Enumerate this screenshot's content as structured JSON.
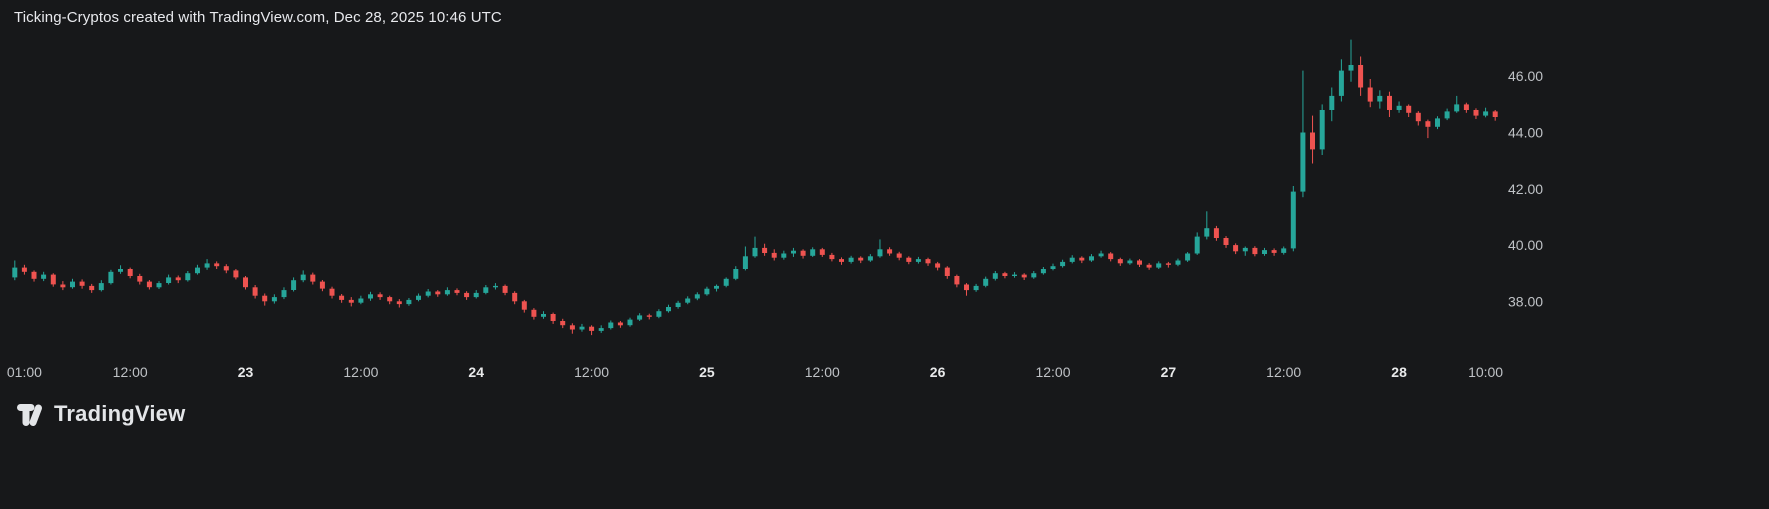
{
  "header": {
    "title": "Ticking-Cryptos created with TradingView.com, Dec 28, 2025 10:46 UTC"
  },
  "branding": {
    "name": "TradingView",
    "logo_icon": "tradingview-mark"
  },
  "colors": {
    "background": "#17181a",
    "up": "#26a69a",
    "down": "#ef5350",
    "axis_text": "#bfc2c6",
    "axis_text_major": "#e8e9ea",
    "title_text": "#e8e9ed",
    "logo": "#e3e5e8"
  },
  "chart_data": {
    "type": "candlestick",
    "title": "Ticking-Cryptos",
    "xlabel": "",
    "ylabel": "",
    "grid": false,
    "legend": "none",
    "ylim": [
      36.2,
      47.5
    ],
    "y_axis_side": "right",
    "y_ticks": [
      38,
      40,
      42,
      44,
      46
    ],
    "y_tick_labels": [
      "38.00",
      "40.00",
      "42.00",
      "44.00",
      "46.00"
    ],
    "x_ticks": [
      {
        "i": 1,
        "label": "01:00",
        "major": false
      },
      {
        "i": 12,
        "label": "12:00",
        "major": false
      },
      {
        "i": 24,
        "label": "23",
        "major": true
      },
      {
        "i": 36,
        "label": "12:00",
        "major": false
      },
      {
        "i": 48,
        "label": "24",
        "major": true
      },
      {
        "i": 60,
        "label": "12:00",
        "major": false
      },
      {
        "i": 72,
        "label": "25",
        "major": true
      },
      {
        "i": 84,
        "label": "12:00",
        "major": false
      },
      {
        "i": 96,
        "label": "26",
        "major": true
      },
      {
        "i": 108,
        "label": "12:00",
        "major": false
      },
      {
        "i": 120,
        "label": "27",
        "major": true
      },
      {
        "i": 132,
        "label": "12:00",
        "major": false
      },
      {
        "i": 144,
        "label": "28",
        "major": true
      },
      {
        "i": 153,
        "label": "10:00",
        "major": false
      }
    ],
    "candles": [
      [
        38.85,
        39.45,
        38.75,
        39.2
      ],
      [
        39.2,
        39.3,
        38.95,
        39.05
      ],
      [
        39.05,
        39.1,
        38.7,
        38.8
      ],
      [
        38.8,
        39.05,
        38.72,
        38.95
      ],
      [
        38.95,
        39.0,
        38.52,
        38.6
      ],
      [
        38.6,
        38.72,
        38.4,
        38.5
      ],
      [
        38.5,
        38.8,
        38.45,
        38.7
      ],
      [
        38.7,
        38.78,
        38.45,
        38.55
      ],
      [
        38.55,
        38.62,
        38.3,
        38.4
      ],
      [
        38.4,
        38.75,
        38.35,
        38.65
      ],
      [
        38.65,
        39.12,
        38.6,
        39.05
      ],
      [
        39.05,
        39.28,
        38.98,
        39.15
      ],
      [
        39.15,
        39.2,
        38.82,
        38.9
      ],
      [
        38.9,
        38.98,
        38.6,
        38.7
      ],
      [
        38.7,
        38.76,
        38.42,
        38.5
      ],
      [
        38.5,
        38.72,
        38.44,
        38.65
      ],
      [
        38.65,
        38.95,
        38.6,
        38.85
      ],
      [
        38.85,
        38.92,
        38.65,
        38.75
      ],
      [
        38.75,
        39.08,
        38.7,
        39.0
      ],
      [
        39.0,
        39.3,
        38.95,
        39.2
      ],
      [
        39.2,
        39.5,
        39.12,
        39.35
      ],
      [
        39.35,
        39.42,
        39.15,
        39.25
      ],
      [
        39.25,
        39.32,
        39.0,
        39.1
      ],
      [
        39.1,
        39.15,
        38.78,
        38.85
      ],
      [
        38.85,
        38.9,
        38.42,
        38.5
      ],
      [
        38.5,
        38.58,
        38.1,
        38.2
      ],
      [
        38.2,
        38.28,
        37.85,
        38.0
      ],
      [
        38.0,
        38.25,
        37.92,
        38.15
      ],
      [
        38.15,
        38.5,
        38.08,
        38.4
      ],
      [
        38.4,
        38.85,
        38.35,
        38.75
      ],
      [
        38.75,
        39.1,
        38.68,
        38.95
      ],
      [
        38.95,
        39.02,
        38.6,
        38.7
      ],
      [
        38.7,
        38.76,
        38.36,
        38.45
      ],
      [
        38.45,
        38.52,
        38.1,
        38.2
      ],
      [
        38.2,
        38.26,
        37.95,
        38.05
      ],
      [
        38.05,
        38.15,
        37.82,
        37.95
      ],
      [
        37.95,
        38.2,
        37.9,
        38.1
      ],
      [
        38.1,
        38.34,
        38.02,
        38.25
      ],
      [
        38.25,
        38.32,
        38.05,
        38.15
      ],
      [
        38.15,
        38.2,
        37.9,
        38.0
      ],
      [
        38.0,
        38.08,
        37.78,
        37.9
      ],
      [
        37.9,
        38.12,
        37.84,
        38.05
      ],
      [
        38.05,
        38.28,
        38.0,
        38.2
      ],
      [
        38.2,
        38.44,
        38.14,
        38.35
      ],
      [
        38.35,
        38.4,
        38.16,
        38.25
      ],
      [
        38.25,
        38.5,
        38.2,
        38.4
      ],
      [
        38.4,
        38.46,
        38.22,
        38.3
      ],
      [
        38.3,
        38.36,
        38.05,
        38.15
      ],
      [
        38.15,
        38.4,
        38.1,
        38.3
      ],
      [
        38.3,
        38.58,
        38.25,
        38.5
      ],
      [
        38.5,
        38.65,
        38.42,
        38.55
      ],
      [
        38.55,
        38.6,
        38.22,
        38.3
      ],
      [
        38.3,
        38.36,
        37.9,
        38.0
      ],
      [
        38.0,
        38.05,
        37.6,
        37.7
      ],
      [
        37.7,
        37.76,
        37.35,
        37.45
      ],
      [
        37.45,
        37.65,
        37.38,
        37.55
      ],
      [
        37.55,
        37.6,
        37.2,
        37.3
      ],
      [
        37.3,
        37.38,
        37.05,
        37.15
      ],
      [
        37.15,
        37.22,
        36.85,
        37.0
      ],
      [
        37.0,
        37.2,
        36.92,
        37.1
      ],
      [
        37.1,
        37.15,
        36.8,
        36.95
      ],
      [
        36.95,
        37.15,
        36.88,
        37.05
      ],
      [
        37.05,
        37.32,
        37.0,
        37.25
      ],
      [
        37.25,
        37.3,
        37.06,
        37.15
      ],
      [
        37.15,
        37.42,
        37.1,
        37.35
      ],
      [
        37.35,
        37.58,
        37.3,
        37.5
      ],
      [
        37.5,
        37.56,
        37.36,
        37.45
      ],
      [
        37.45,
        37.72,
        37.4,
        37.65
      ],
      [
        37.65,
        37.88,
        37.6,
        37.8
      ],
      [
        37.8,
        38.02,
        37.74,
        37.95
      ],
      [
        37.95,
        38.18,
        37.9,
        38.1
      ],
      [
        38.1,
        38.32,
        38.04,
        38.25
      ],
      [
        38.25,
        38.52,
        38.2,
        38.45
      ],
      [
        38.45,
        38.6,
        38.35,
        38.55
      ],
      [
        38.55,
        38.85,
        38.5,
        38.8
      ],
      [
        38.8,
        39.25,
        38.75,
        39.15
      ],
      [
        39.15,
        39.95,
        39.1,
        39.6
      ],
      [
        39.6,
        40.3,
        39.55,
        39.9
      ],
      [
        39.9,
        40.05,
        39.62,
        39.72
      ],
      [
        39.72,
        39.85,
        39.45,
        39.55
      ],
      [
        39.55,
        39.8,
        39.48,
        39.7
      ],
      [
        39.7,
        39.9,
        39.58,
        39.8
      ],
      [
        39.8,
        39.85,
        39.52,
        39.62
      ],
      [
        39.62,
        39.92,
        39.58,
        39.85
      ],
      [
        39.85,
        39.9,
        39.58,
        39.65
      ],
      [
        39.65,
        39.72,
        39.42,
        39.5
      ],
      [
        39.5,
        39.56,
        39.3,
        39.4
      ],
      [
        39.4,
        39.62,
        39.34,
        39.55
      ],
      [
        39.55,
        39.6,
        39.36,
        39.45
      ],
      [
        39.45,
        39.68,
        39.4,
        39.6
      ],
      [
        39.6,
        40.2,
        39.55,
        39.85
      ],
      [
        39.85,
        39.92,
        39.62,
        39.7
      ],
      [
        39.7,
        39.76,
        39.46,
        39.55
      ],
      [
        39.55,
        39.6,
        39.32,
        39.4
      ],
      [
        39.4,
        39.58,
        39.34,
        39.5
      ],
      [
        39.5,
        39.55,
        39.26,
        39.35
      ],
      [
        39.35,
        39.4,
        39.1,
        39.2
      ],
      [
        39.2,
        39.25,
        38.8,
        38.9
      ],
      [
        38.9,
        38.95,
        38.5,
        38.6
      ],
      [
        38.6,
        38.65,
        38.2,
        38.4
      ],
      [
        38.4,
        38.62,
        38.34,
        38.55
      ],
      [
        38.55,
        38.88,
        38.5,
        38.8
      ],
      [
        38.8,
        39.08,
        38.74,
        39.0
      ],
      [
        39.0,
        39.05,
        38.82,
        38.9
      ],
      [
        38.9,
        39.04,
        38.84,
        38.95
      ],
      [
        38.95,
        39.0,
        38.76,
        38.85
      ],
      [
        38.85,
        39.08,
        38.8,
        39.0
      ],
      [
        39.0,
        39.22,
        38.95,
        39.15
      ],
      [
        39.15,
        39.34,
        39.1,
        39.25
      ],
      [
        39.25,
        39.48,
        39.2,
        39.4
      ],
      [
        39.4,
        39.64,
        39.35,
        39.55
      ],
      [
        39.55,
        39.6,
        39.36,
        39.45
      ],
      [
        39.45,
        39.68,
        39.4,
        39.6
      ],
      [
        39.6,
        39.8,
        39.55,
        39.7
      ],
      [
        39.7,
        39.75,
        39.42,
        39.5
      ],
      [
        39.5,
        39.55,
        39.26,
        39.35
      ],
      [
        39.35,
        39.52,
        39.3,
        39.45
      ],
      [
        39.45,
        39.5,
        39.22,
        39.3
      ],
      [
        39.3,
        39.36,
        39.12,
        39.2
      ],
      [
        39.2,
        39.42,
        39.15,
        39.35
      ],
      [
        39.35,
        39.4,
        39.2,
        39.3
      ],
      [
        39.3,
        39.52,
        39.25,
        39.45
      ],
      [
        39.45,
        39.75,
        39.4,
        39.7
      ],
      [
        39.7,
        40.45,
        39.65,
        40.3
      ],
      [
        40.3,
        41.2,
        40.2,
        40.6
      ],
      [
        40.6,
        40.68,
        40.15,
        40.25
      ],
      [
        40.25,
        40.32,
        39.9,
        40.0
      ],
      [
        40.0,
        40.06,
        39.68,
        39.78
      ],
      [
        39.78,
        39.95,
        39.62,
        39.9
      ],
      [
        39.9,
        39.96,
        39.6,
        39.68
      ],
      [
        39.68,
        39.9,
        39.62,
        39.82
      ],
      [
        39.82,
        39.88,
        39.62,
        39.72
      ],
      [
        39.72,
        39.95,
        39.66,
        39.88
      ],
      [
        39.88,
        42.1,
        39.78,
        41.9
      ],
      [
        41.9,
        46.2,
        41.7,
        44.0
      ],
      [
        44.0,
        44.6,
        42.9,
        43.4
      ],
      [
        43.4,
        45.0,
        43.2,
        44.8
      ],
      [
        44.8,
        45.6,
        44.4,
        45.3
      ],
      [
        45.3,
        46.6,
        45.1,
        46.2
      ],
      [
        46.2,
        47.3,
        45.8,
        46.4
      ],
      [
        46.4,
        46.7,
        45.3,
        45.6
      ],
      [
        45.6,
        45.9,
        44.9,
        45.1
      ],
      [
        45.1,
        45.5,
        44.85,
        45.3
      ],
      [
        45.3,
        45.45,
        44.55,
        44.8
      ],
      [
        44.8,
        45.1,
        44.7,
        44.95
      ],
      [
        44.95,
        45.0,
        44.55,
        44.7
      ],
      [
        44.7,
        44.76,
        44.25,
        44.4
      ],
      [
        44.4,
        44.46,
        43.8,
        44.2
      ],
      [
        44.2,
        44.58,
        44.12,
        44.5
      ],
      [
        44.5,
        44.85,
        44.44,
        44.75
      ],
      [
        44.75,
        45.3,
        44.7,
        45.0
      ],
      [
        45.0,
        45.06,
        44.7,
        44.8
      ],
      [
        44.8,
        44.86,
        44.48,
        44.6
      ],
      [
        44.6,
        44.88,
        44.54,
        44.75
      ],
      [
        44.75,
        44.8,
        44.42,
        44.55
      ]
    ]
  }
}
